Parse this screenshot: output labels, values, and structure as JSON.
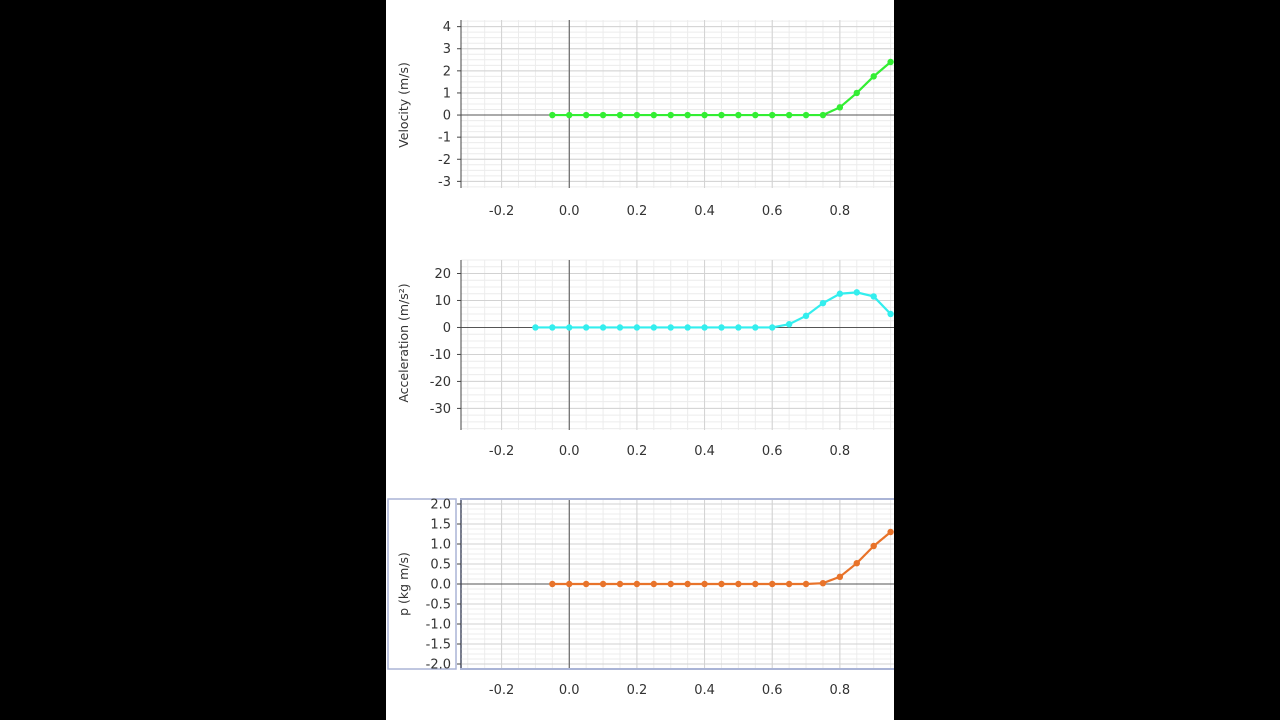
{
  "chart_data": [
    {
      "type": "line",
      "ylabel": "Velocity (m/s)",
      "xlim": [
        -0.32,
        0.96
      ],
      "ylim": [
        -3.3,
        4.3
      ],
      "x_ticks": [
        "-0.2",
        "0.0",
        "0.2",
        "0.4",
        "0.6",
        "0.8"
      ],
      "y_ticks": [
        "4",
        "3",
        "2",
        "1",
        "0",
        "-1",
        "-2",
        "-3"
      ],
      "grid": true,
      "color": "#33ee33",
      "series": [
        {
          "x": [
            -0.05,
            0.0,
            0.05,
            0.1,
            0.15,
            0.2,
            0.25,
            0.3,
            0.35,
            0.4,
            0.45,
            0.5,
            0.55,
            0.6,
            0.65,
            0.7,
            0.75,
            0.8,
            0.85,
            0.9,
            0.95
          ],
          "y": [
            0,
            0,
            0,
            0,
            0,
            0,
            0,
            0,
            0,
            0,
            0,
            0,
            0,
            0,
            0,
            0,
            0,
            0.35,
            1.0,
            1.75,
            2.4
          ]
        }
      ]
    },
    {
      "type": "line",
      "ylabel": "Acceleration (m/s²)",
      "xlim": [
        -0.32,
        0.96
      ],
      "ylim": [
        -38,
        25
      ],
      "x_ticks": [
        "-0.2",
        "0.0",
        "0.2",
        "0.4",
        "0.6",
        "0.8"
      ],
      "y_ticks": [
        "20",
        "10",
        "0",
        "-10",
        "-20",
        "-30"
      ],
      "grid": true,
      "color": "#33eeee",
      "series": [
        {
          "x": [
            -0.1,
            -0.05,
            0.0,
            0.05,
            0.1,
            0.15,
            0.2,
            0.25,
            0.3,
            0.35,
            0.4,
            0.45,
            0.5,
            0.55,
            0.6,
            0.65,
            0.7,
            0.75,
            0.8,
            0.85,
            0.9,
            0.95
          ],
          "y": [
            0,
            0,
            0,
            0,
            0,
            0,
            0,
            0,
            0,
            0,
            0,
            0,
            0,
            0,
            0,
            1.2,
            4.3,
            9.0,
            12.5,
            13.0,
            11.5,
            5.0
          ]
        }
      ]
    },
    {
      "type": "line",
      "ylabel": "p (kg m/s)",
      "xlim": [
        -0.32,
        0.96
      ],
      "ylim": [
        -2.1,
        2.1
      ],
      "x_ticks": [
        "-0.2",
        "0.0",
        "0.2",
        "0.4",
        "0.6",
        "0.8"
      ],
      "y_ticks": [
        "2.0",
        "1.5",
        "1.0",
        "0.5",
        "0.0",
        "-0.5",
        "-1.0",
        "-1.5",
        "-2.0"
      ],
      "grid": true,
      "color": "#e8732a",
      "series": [
        {
          "x": [
            -0.05,
            0.0,
            0.05,
            0.1,
            0.15,
            0.2,
            0.25,
            0.3,
            0.35,
            0.4,
            0.45,
            0.5,
            0.55,
            0.6,
            0.65,
            0.7,
            0.75,
            0.8,
            0.85,
            0.9,
            0.95
          ],
          "y": [
            0,
            0,
            0,
            0,
            0,
            0,
            0,
            0,
            0,
            0,
            0,
            0,
            0,
            0,
            0,
            0,
            0.02,
            0.18,
            0.52,
            0.95,
            1.3
          ]
        }
      ]
    }
  ]
}
